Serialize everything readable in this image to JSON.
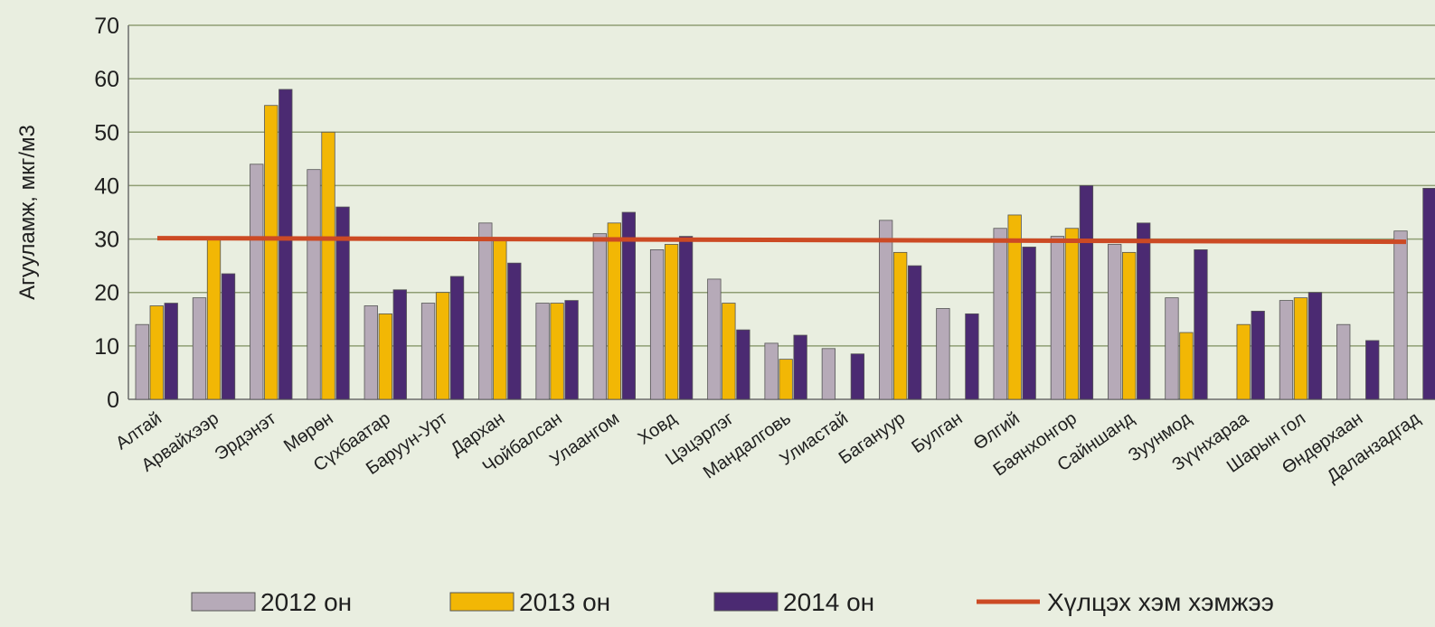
{
  "chart_data": {
    "type": "bar",
    "ylabel": "Агууламж, мкг/м3",
    "ylim": [
      0,
      70
    ],
    "yticks": [
      0,
      10,
      20,
      30,
      40,
      50,
      60,
      70
    ],
    "grid": true,
    "legend_position": "bottom",
    "categories": [
      "Алтай",
      "Арвайхээр",
      "Эрдэнэт",
      "Мөрөн",
      "Сүхбаатар",
      "Баруун-Урт",
      "Дархан",
      "Чойбалсан",
      "Улаангом",
      "Ховд",
      "Цэцэрлэг",
      "Мандалговь",
      "Улиастай",
      "Багануур",
      "Булган",
      "Өлгий",
      "Баянхонгор",
      "Сайншанд",
      "Зуунмод",
      "Зүүнхараа",
      "Шарын гол",
      "Өндөрхаан",
      "Даланзадгад"
    ],
    "series": [
      {
        "name": "2012 он",
        "color": "#b6aab8",
        "values": [
          14,
          19,
          44,
          43,
          17.5,
          18,
          33,
          18,
          31,
          28,
          22.5,
          10.5,
          9.5,
          33.5,
          17,
          32,
          30.5,
          29,
          19,
          null,
          18.5,
          14,
          31.5
        ]
      },
      {
        "name": "2013 он",
        "color": "#f2b705",
        "values": [
          17.5,
          30,
          55,
          50,
          16,
          20,
          30,
          18,
          33,
          29,
          18,
          7.5,
          null,
          27.5,
          null,
          34.5,
          32,
          27.5,
          12.5,
          14,
          19,
          null,
          null
        ]
      },
      {
        "name": "2014 он",
        "color": "#4b2a72",
        "values": [
          18,
          23.5,
          58,
          36,
          20.5,
          23,
          25.5,
          18.5,
          35,
          30.5,
          13,
          12,
          8.5,
          25,
          16,
          28.5,
          40,
          33,
          28,
          16.5,
          20,
          11,
          39.5
        ]
      }
    ],
    "reference_line": {
      "name": "Хүлцэх хэм хэмжээ",
      "value": 30,
      "color": "#cc4a24"
    }
  }
}
